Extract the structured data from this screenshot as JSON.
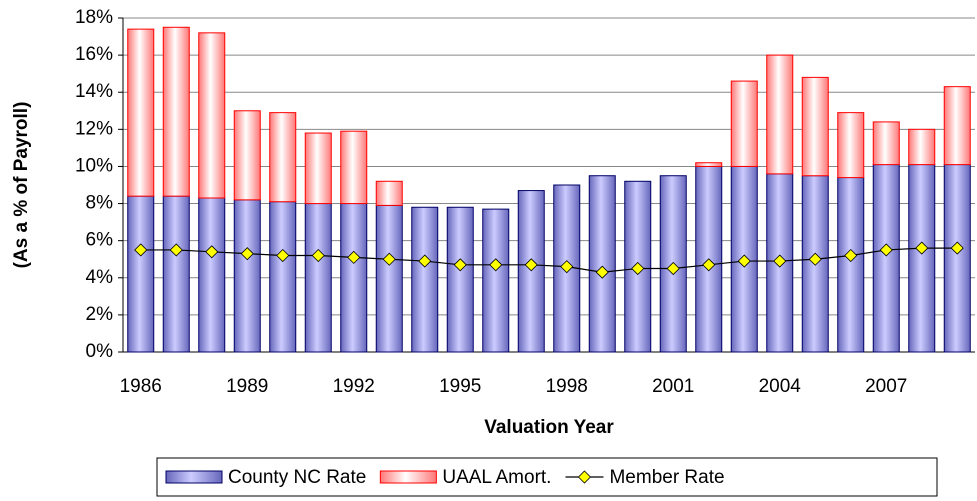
{
  "chart_data": {
    "type": "stacked-bar-line",
    "ylabel": "(As a % of Payroll)",
    "xlabel": "Valuation Year",
    "categories": [
      "1986",
      null,
      null,
      "1989",
      null,
      null,
      "1992",
      null,
      null,
      "1995",
      null,
      null,
      "1998",
      null,
      null,
      "2001",
      null,
      null,
      "2004",
      null,
      null,
      "2007",
      null,
      null
    ],
    "series": [
      {
        "name": "County NC Rate",
        "color": "#9999ee",
        "kind": "bar",
        "values": [
          8.4,
          8.4,
          8.3,
          8.2,
          8.1,
          8.0,
          8.0,
          7.9,
          7.8,
          7.8,
          7.7,
          8.7,
          9.0,
          9.5,
          9.2,
          9.5,
          10.0,
          10.0,
          9.6,
          9.5,
          9.4,
          10.1,
          10.1,
          10.1
        ]
      },
      {
        "name": "UAAL Amort.",
        "color": "#ffaaaa",
        "kind": "bar",
        "values": [
          9.0,
          9.1,
          8.9,
          4.8,
          4.8,
          3.8,
          3.9,
          1.3,
          0,
          0,
          0,
          0,
          0,
          0,
          0,
          0,
          0.2,
          4.6,
          6.4,
          5.3,
          3.5,
          2.3,
          1.9,
          4.2
        ]
      },
      {
        "name": "Member Rate",
        "color": "#ffff00",
        "kind": "line",
        "values": [
          5.5,
          5.5,
          5.4,
          5.3,
          5.2,
          5.2,
          5.1,
          5.0,
          4.9,
          4.7,
          4.7,
          4.7,
          4.6,
          4.3,
          4.5,
          4.5,
          4.7,
          4.9,
          4.9,
          5.0,
          5.2,
          5.5,
          5.6,
          5.6
        ]
      }
    ],
    "ylim": [
      0,
      18
    ],
    "yticks": [
      {
        "value": 0,
        "label": "0%"
      },
      {
        "value": 2,
        "label": "2%"
      },
      {
        "value": 4,
        "label": "4%"
      },
      {
        "value": 6,
        "label": "6%"
      },
      {
        "value": 8,
        "label": "8%"
      },
      {
        "value": 10,
        "label": "10%"
      },
      {
        "value": 12,
        "label": "12%"
      },
      {
        "value": 14,
        "label": "14%"
      },
      {
        "value": 16,
        "label": "16%"
      },
      {
        "value": 18,
        "label": "18%"
      }
    ],
    "grid": true,
    "legend": "bottom"
  }
}
